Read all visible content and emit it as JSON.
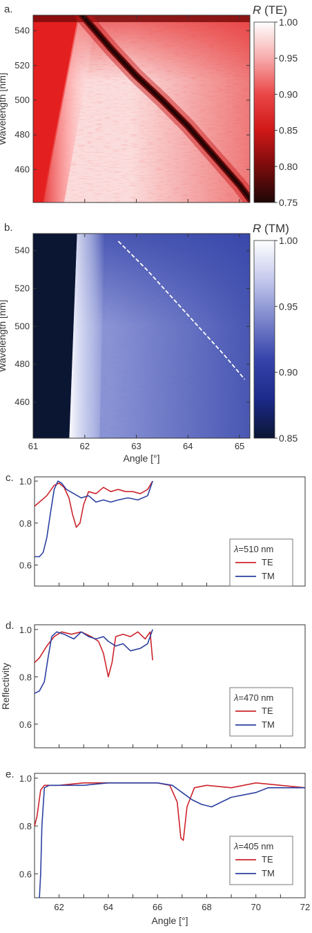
{
  "chart_data": [
    {
      "panel": "a.",
      "type": "heatmap",
      "title": "",
      "xlabel": "",
      "ylabel": "Wavelength [nm]",
      "xlim": [
        61,
        65.2
      ],
      "ylim": [
        441,
        549
      ],
      "y_ticks": [
        460,
        480,
        500,
        520,
        540
      ],
      "x_ticks_unlabeled": [
        62,
        63,
        64,
        65
      ],
      "colorbar": {
        "title_symbol": "R",
        "title_suffix": " (TE)",
        "range": [
          0.75,
          1.0
        ],
        "ticks": [
          "0.75",
          "0.80",
          "0.85",
          "0.90",
          "0.95",
          "1.00"
        ],
        "colors": [
          "#1e0707",
          "#7a0c0c",
          "#d01818",
          "#ea4747",
          "#f7abab",
          "#ffffff"
        ]
      },
      "features": [
        {
          "name": "critical-angle edge",
          "angle_at_top": 61.9,
          "angle_at_bottom": 61.2
        },
        {
          "name": "resonance dip",
          "min_R": 0.75,
          "points": [
            [
              61.95,
              549
            ],
            [
              62.5,
              530
            ],
            [
              63.0,
              514
            ],
            [
              63.5,
              500
            ],
            [
              64.0,
              485
            ],
            [
              64.5,
              468
            ],
            [
              65.0,
              451
            ],
            [
              65.2,
              443
            ]
          ]
        }
      ]
    },
    {
      "panel": "b.",
      "type": "heatmap",
      "title": "",
      "xlabel": "Angle [°]",
      "ylabel": "Wavelength [nm]",
      "xlim": [
        61,
        65.2
      ],
      "ylim": [
        441,
        549
      ],
      "x_ticks": [
        61,
        62,
        63,
        64,
        65
      ],
      "y_ticks": [
        460,
        480,
        500,
        520,
        540
      ],
      "colorbar": {
        "title_symbol": "R",
        "title_suffix": " (TM)",
        "range": [
          0.85,
          1.0
        ],
        "ticks": [
          "0.85",
          "0.90",
          "0.95",
          "1.00"
        ],
        "colors": [
          "#0b1633",
          "#1c2a8a",
          "#3644ab",
          "#7b86cc",
          "#c3c8ec",
          "#ffffff"
        ]
      },
      "features": [
        {
          "name": "critical-angle edge",
          "angle_at_top": 61.85,
          "angle_at_bottom": 61.7
        },
        {
          "name": "guided mode (dashed line)",
          "points": [
            [
              62.65,
              545
            ],
            [
              63.2,
              530
            ],
            [
              63.7,
              515
            ],
            [
              64.2,
              500
            ],
            [
              64.7,
              485
            ],
            [
              65.1,
              472
            ]
          ]
        }
      ]
    },
    {
      "panel": "c.",
      "type": "line",
      "title": "",
      "xlabel": "",
      "ylabel": "",
      "xlim": [
        61,
        72
      ],
      "ylim": [
        0.5,
        1.02
      ],
      "y_ticks": [
        "0.6",
        "0.8",
        "1.0"
      ],
      "legend": {
        "title_symbol": "λ",
        "title_value": "=510 nm",
        "placement": "right"
      },
      "series": [
        {
          "name": "TE",
          "color": "#cc2229",
          "points": [
            [
              61.0,
              0.88
            ],
            [
              61.2,
              0.9
            ],
            [
              61.5,
              0.93
            ],
            [
              61.8,
              0.98
            ],
            [
              62.0,
              0.99
            ],
            [
              62.2,
              0.97
            ],
            [
              62.4,
              0.92
            ],
            [
              62.55,
              0.84
            ],
            [
              62.7,
              0.78
            ],
            [
              62.85,
              0.8
            ],
            [
              63.0,
              0.89
            ],
            [
              63.2,
              0.95
            ],
            [
              63.5,
              0.94
            ],
            [
              63.8,
              0.97
            ],
            [
              64.1,
              0.95
            ],
            [
              64.4,
              0.96
            ],
            [
              64.7,
              0.95
            ],
            [
              65.0,
              0.95
            ],
            [
              65.3,
              0.94
            ],
            [
              65.6,
              0.96
            ],
            [
              65.75,
              0.99
            ],
            [
              65.8,
              1.0
            ]
          ]
        },
        {
          "name": "TM",
          "color": "#2a3fa0",
          "points": [
            [
              61.0,
              0.64
            ],
            [
              61.2,
              0.64
            ],
            [
              61.35,
              0.66
            ],
            [
              61.5,
              0.73
            ],
            [
              61.65,
              0.85
            ],
            [
              61.8,
              0.96
            ],
            [
              61.95,
              1.0
            ],
            [
              62.1,
              0.99
            ],
            [
              62.3,
              0.96
            ],
            [
              62.6,
              0.94
            ],
            [
              62.9,
              0.92
            ],
            [
              63.2,
              0.93
            ],
            [
              63.5,
              0.9
            ],
            [
              63.8,
              0.91
            ],
            [
              64.1,
              0.9
            ],
            [
              64.4,
              0.91
            ],
            [
              64.8,
              0.92
            ],
            [
              65.2,
              0.91
            ],
            [
              65.6,
              0.93
            ],
            [
              65.8,
              1.0
            ]
          ]
        }
      ]
    },
    {
      "panel": "d.",
      "type": "line",
      "title": "",
      "xlabel": "",
      "ylabel": "Reflectivity",
      "xlim": [
        61,
        72
      ],
      "ylim": [
        0.5,
        1.02
      ],
      "y_ticks": [
        "0.6",
        "0.8",
        "1.0"
      ],
      "legend": {
        "title_symbol": "λ",
        "title_value": "=470 nm",
        "placement": "right"
      },
      "series": [
        {
          "name": "TE",
          "color": "#cc2229",
          "points": [
            [
              61.0,
              0.86
            ],
            [
              61.2,
              0.88
            ],
            [
              61.5,
              0.93
            ],
            [
              61.8,
              0.97
            ],
            [
              62.1,
              0.99
            ],
            [
              62.5,
              0.98
            ],
            [
              62.9,
              0.99
            ],
            [
              63.3,
              0.97
            ],
            [
              63.6,
              0.95
            ],
            [
              63.8,
              0.9
            ],
            [
              64.0,
              0.8
            ],
            [
              64.15,
              0.86
            ],
            [
              64.3,
              0.97
            ],
            [
              64.6,
              0.98
            ],
            [
              64.9,
              0.97
            ],
            [
              65.2,
              0.99
            ],
            [
              65.5,
              0.96
            ],
            [
              65.7,
              0.99
            ],
            [
              65.8,
              0.87
            ]
          ]
        },
        {
          "name": "TM",
          "color": "#2a3fa0",
          "points": [
            [
              61.0,
              0.73
            ],
            [
              61.2,
              0.74
            ],
            [
              61.4,
              0.78
            ],
            [
              61.55,
              0.88
            ],
            [
              61.7,
              0.97
            ],
            [
              61.9,
              0.99
            ],
            [
              62.2,
              0.98
            ],
            [
              62.6,
              0.96
            ],
            [
              62.9,
              0.99
            ],
            [
              63.2,
              0.97
            ],
            [
              63.5,
              0.96
            ],
            [
              63.8,
              0.97
            ],
            [
              64.0,
              0.95
            ],
            [
              64.3,
              0.93
            ],
            [
              64.6,
              0.94
            ],
            [
              64.9,
              0.91
            ],
            [
              65.3,
              0.92
            ],
            [
              65.6,
              0.94
            ],
            [
              65.8,
              1.0
            ]
          ]
        }
      ]
    },
    {
      "panel": "e.",
      "type": "line",
      "title": "",
      "xlabel": "Angle [°]",
      "ylabel": "",
      "xlim": [
        61,
        72
      ],
      "ylim": [
        0.5,
        1.02
      ],
      "x_ticks": [
        62,
        64,
        66,
        68,
        70,
        72
      ],
      "y_ticks": [
        "0.6",
        "0.8",
        "1.0"
      ],
      "legend": {
        "title_symbol": "λ",
        "title_value": "=405 nm",
        "placement": "bottom-right"
      },
      "series": [
        {
          "name": "TE",
          "color": "#cc2229",
          "points": [
            [
              61.0,
              0.8
            ],
            [
              61.1,
              0.84
            ],
            [
              61.25,
              0.95
            ],
            [
              61.4,
              0.97
            ],
            [
              62.0,
              0.97
            ],
            [
              63.0,
              0.98
            ],
            [
              64.0,
              0.98
            ],
            [
              65.0,
              0.98
            ],
            [
              66.0,
              0.98
            ],
            [
              66.5,
              0.97
            ],
            [
              66.8,
              0.9
            ],
            [
              66.95,
              0.75
            ],
            [
              67.05,
              0.74
            ],
            [
              67.2,
              0.88
            ],
            [
              67.5,
              0.96
            ],
            [
              68.0,
              0.97
            ],
            [
              69.0,
              0.96
            ],
            [
              70.0,
              0.98
            ],
            [
              71.0,
              0.97
            ],
            [
              72.0,
              0.96
            ]
          ]
        },
        {
          "name": "TM",
          "color": "#2a3fa0",
          "points": [
            [
              61.2,
              0.5
            ],
            [
              61.25,
              0.6
            ],
            [
              61.3,
              0.8
            ],
            [
              61.4,
              0.96
            ],
            [
              61.6,
              0.97
            ],
            [
              62.0,
              0.97
            ],
            [
              63.0,
              0.97
            ],
            [
              64.0,
              0.98
            ],
            [
              65.0,
              0.98
            ],
            [
              66.0,
              0.98
            ],
            [
              66.6,
              0.97
            ],
            [
              67.0,
              0.94
            ],
            [
              67.4,
              0.91
            ],
            [
              67.8,
              0.89
            ],
            [
              68.2,
              0.88
            ],
            [
              68.6,
              0.9
            ],
            [
              69.0,
              0.92
            ],
            [
              69.5,
              0.93
            ],
            [
              70.0,
              0.94
            ],
            [
              70.5,
              0.96
            ],
            [
              71.0,
              0.96
            ],
            [
              72.0,
              0.96
            ]
          ]
        }
      ]
    }
  ]
}
